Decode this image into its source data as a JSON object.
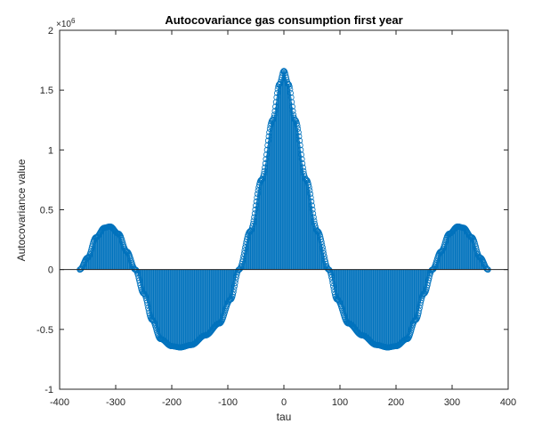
{
  "chart_data": {
    "type": "stem",
    "title": "Autocovariance gas consumption first year",
    "xlabel": "tau",
    "ylabel": "Autocovariance value",
    "exponent_label": "×10",
    "exponent_power": "6",
    "xlim": [
      -400,
      400
    ],
    "ylim": [
      -1,
      2
    ],
    "y_scale": 1000000,
    "xticks": [
      -400,
      -300,
      -200,
      -100,
      0,
      100,
      200,
      300,
      400
    ],
    "yticks": [
      -1,
      -0.5,
      0,
      0.5,
      1,
      1.5,
      2
    ],
    "xtick_labels": [
      "-400",
      "-300",
      "-200",
      "-100",
      "0",
      "100",
      "200",
      "300",
      "400"
    ],
    "ytick_labels": [
      "-1",
      "-0.5",
      "0",
      "0.5",
      "1",
      "1.5",
      "2"
    ],
    "grid": false,
    "color": "#0072BD",
    "series": [
      {
        "lag_range": [
          -364,
          364
        ],
        "shape_points": [
          {
            "x": -364,
            "y": 0.0
          },
          {
            "x": -350,
            "y": 0.1
          },
          {
            "x": -335,
            "y": 0.27
          },
          {
            "x": -320,
            "y": 0.35
          },
          {
            "x": -310,
            "y": 0.36
          },
          {
            "x": -295,
            "y": 0.3
          },
          {
            "x": -280,
            "y": 0.15
          },
          {
            "x": -265,
            "y": 0.0
          },
          {
            "x": -250,
            "y": -0.2
          },
          {
            "x": -235,
            "y": -0.42
          },
          {
            "x": -220,
            "y": -0.58
          },
          {
            "x": -200,
            "y": -0.64
          },
          {
            "x": -185,
            "y": -0.65
          },
          {
            "x": -165,
            "y": -0.63
          },
          {
            "x": -140,
            "y": -0.55
          },
          {
            "x": -115,
            "y": -0.45
          },
          {
            "x": -95,
            "y": -0.25
          },
          {
            "x": -80,
            "y": 0.0
          },
          {
            "x": -60,
            "y": 0.32
          },
          {
            "x": -40,
            "y": 0.75
          },
          {
            "x": -20,
            "y": 1.25
          },
          {
            "x": -8,
            "y": 1.55
          },
          {
            "x": 0,
            "y": 1.66
          },
          {
            "x": 8,
            "y": 1.55
          },
          {
            "x": 20,
            "y": 1.25
          },
          {
            "x": 40,
            "y": 0.75
          },
          {
            "x": 60,
            "y": 0.32
          },
          {
            "x": 80,
            "y": 0.0
          },
          {
            "x": 95,
            "y": -0.25
          },
          {
            "x": 115,
            "y": -0.45
          },
          {
            "x": 140,
            "y": -0.55
          },
          {
            "x": 165,
            "y": -0.63
          },
          {
            "x": 185,
            "y": -0.65
          },
          {
            "x": 200,
            "y": -0.64
          },
          {
            "x": 220,
            "y": -0.58
          },
          {
            "x": 235,
            "y": -0.42
          },
          {
            "x": 250,
            "y": -0.2
          },
          {
            "x": 265,
            "y": 0.0
          },
          {
            "x": 280,
            "y": 0.15
          },
          {
            "x": 295,
            "y": 0.3
          },
          {
            "x": 310,
            "y": 0.36
          },
          {
            "x": 320,
            "y": 0.35
          },
          {
            "x": 335,
            "y": 0.27
          },
          {
            "x": 350,
            "y": 0.1
          },
          {
            "x": 364,
            "y": 0.0
          }
        ]
      }
    ]
  }
}
